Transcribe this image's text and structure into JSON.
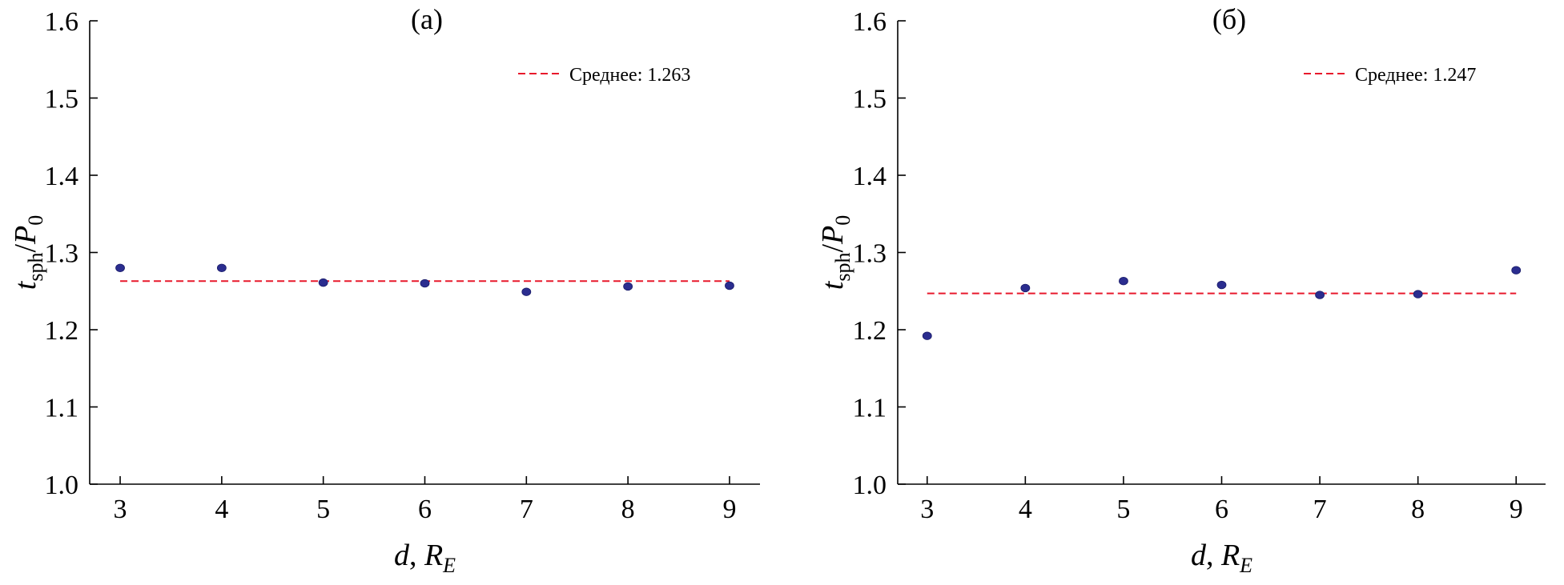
{
  "chart_data": [
    {
      "type": "scatter",
      "title": "(а)",
      "xlabel": {
        "var": "d",
        "sep": ", ",
        "unit_main": "R",
        "unit_sub": "E"
      },
      "ylabel": {
        "num_main": "t",
        "num_sub": "sph",
        "slash": "/",
        "den_main": "P",
        "den_sub": "0"
      },
      "xlim": [
        2.7,
        9.3
      ],
      "ylim": [
        1.0,
        1.6
      ],
      "xticks": [
        3,
        4,
        5,
        6,
        7,
        8,
        9
      ],
      "yticks": [
        "1.0",
        "1.1",
        "1.2",
        "1.3",
        "1.4",
        "1.5",
        "1.6"
      ],
      "x": [
        3,
        4,
        5,
        6,
        7,
        8,
        9
      ],
      "y": [
        1.28,
        1.28,
        1.261,
        1.26,
        1.249,
        1.256,
        1.257
      ],
      "mean": {
        "value": 1.263,
        "label": "Среднее: 1.263"
      },
      "legend_position": "top-right",
      "colors": {
        "points": "#2b2d8f",
        "mean_line": "#e8192c"
      }
    },
    {
      "type": "scatter",
      "title": "(б)",
      "xlabel": {
        "var": "d",
        "sep": ", ",
        "unit_main": "R",
        "unit_sub": "E"
      },
      "ylabel": {
        "num_main": "t",
        "num_sub": "sph",
        "slash": "/",
        "den_main": "P",
        "den_sub": "0"
      },
      "xlim": [
        2.7,
        9.3
      ],
      "ylim": [
        1.0,
        1.6
      ],
      "xticks": [
        3,
        4,
        5,
        6,
        7,
        8,
        9
      ],
      "yticks": [
        "1.0",
        "1.1",
        "1.2",
        "1.3",
        "1.4",
        "1.5",
        "1.6"
      ],
      "x": [
        3,
        4,
        5,
        6,
        7,
        8,
        9
      ],
      "y": [
        1.192,
        1.254,
        1.263,
        1.258,
        1.245,
        1.246,
        1.277
      ],
      "mean": {
        "value": 1.247,
        "label": "Среднее: 1.247"
      },
      "legend_position": "top-right",
      "colors": {
        "points": "#2b2d8f",
        "mean_line": "#e8192c"
      }
    }
  ]
}
